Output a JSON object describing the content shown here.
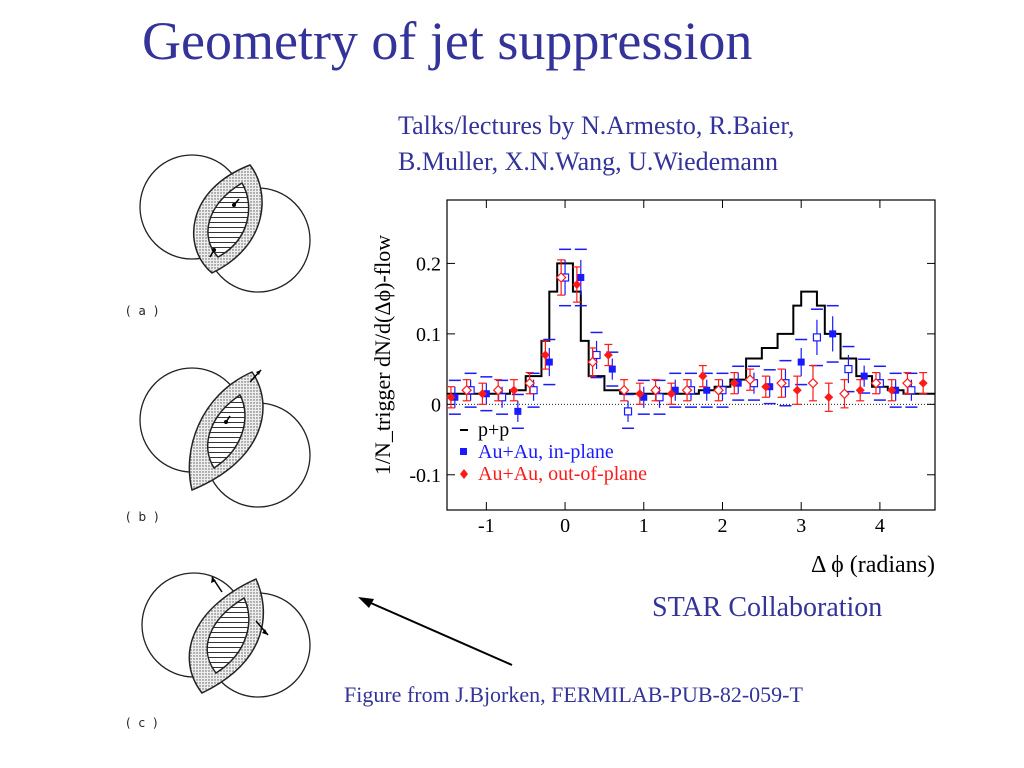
{
  "slide": {
    "title": "Geometry of jet suppression",
    "credits_line1": "Talks/lectures by N.Armesto, R.Baier,",
    "credits_line2": "B.Muller, X.N.Wang, U.Wiedemann",
    "collaboration": "STAR Collaboration",
    "figure_source": "Figure from J.Bjorken, FERMILAB-PUB-82-059-T"
  },
  "diagram": {
    "panels": [
      {
        "label": "( a )"
      },
      {
        "label": "( b )"
      },
      {
        "label": "( c )"
      }
    ]
  },
  "chart_data": {
    "type": "line",
    "xlabel": "Δ ϕ (radians)",
    "ylabel": "1/N_trigger dN/d(Δϕ)-flow",
    "xlim": [
      -1.5,
      4.7
    ],
    "ylim": [
      -0.15,
      0.29
    ],
    "x_ticks": [
      "-1",
      "0",
      "1",
      "2",
      "3",
      "4"
    ],
    "y_ticks": [
      "-0.1",
      "0",
      "0.1",
      "0.2"
    ],
    "x_tick_values": [
      -1,
      0,
      1,
      2,
      3,
      4
    ],
    "y_tick_values": [
      -0.1,
      0,
      0.1,
      0.2
    ],
    "zero_line": "dotted",
    "legend_position": "bottom-left",
    "colors": {
      "pp": "#000000",
      "in_plane": "#1a1aff",
      "out_of_plane": "#ff1a1a"
    },
    "series": [
      {
        "name": "p+p",
        "style": "step",
        "x": [
          -1.5,
          -1.3,
          -1.1,
          -0.9,
          -0.7,
          -0.5,
          -0.3,
          -0.2,
          -0.1,
          0,
          0.1,
          0.2,
          0.3,
          0.5,
          0.7,
          0.9,
          1.1,
          1.3,
          1.5,
          1.7,
          1.9,
          2.1,
          2.3,
          2.5,
          2.7,
          2.9,
          3.0,
          3.1,
          3.2,
          3.3,
          3.5,
          3.7,
          3.9,
          4.1,
          4.3,
          4.5,
          4.7
        ],
        "y": [
          0.015,
          0.015,
          0.015,
          0.015,
          0.02,
          0.04,
          0.09,
          0.16,
          0.2,
          0.2,
          0.16,
          0.09,
          0.04,
          0.02,
          0.015,
          0.015,
          0.015,
          0.015,
          0.015,
          0.02,
          0.025,
          0.035,
          0.065,
          0.08,
          0.1,
          0.14,
          0.16,
          0.16,
          0.14,
          0.1,
          0.065,
          0.04,
          0.025,
          0.02,
          0.015,
          0.015,
          0.015
        ]
      },
      {
        "name": "Au+Au, in-plane",
        "style": "marker",
        "x": [
          -1.4,
          -1.2,
          -1.0,
          -0.8,
          -0.6,
          -0.4,
          -0.2,
          0,
          0.2,
          0.4,
          0.6,
          0.8,
          1.0,
          1.2,
          1.4,
          1.6,
          1.8,
          2.0,
          2.2,
          2.4,
          2.6,
          2.8,
          3.0,
          3.2,
          3.4,
          3.6,
          3.8,
          4.0,
          4.2,
          4.4
        ],
        "y": [
          0.01,
          0.02,
          0.015,
          0.01,
          -0.01,
          0.02,
          0.06,
          0.18,
          0.18,
          0.07,
          0.05,
          -0.01,
          0.01,
          0.01,
          0.02,
          0.02,
          0.02,
          0.02,
          0.03,
          0.03,
          0.025,
          0.03,
          0.06,
          0.095,
          0.1,
          0.05,
          0.04,
          0.03,
          0.02,
          0.02
        ],
        "err": [
          0.015,
          0.015,
          0.015,
          0.015,
          0.015,
          0.015,
          0.02,
          0.025,
          0.025,
          0.02,
          0.015,
          0.015,
          0.015,
          0.015,
          0.015,
          0.015,
          0.015,
          0.015,
          0.015,
          0.015,
          0.015,
          0.02,
          0.02,
          0.025,
          0.025,
          0.02,
          0.015,
          0.015,
          0.015,
          0.015
        ]
      },
      {
        "name": "Au+Au, out-of-plane",
        "style": "marker",
        "x": [
          -1.45,
          -1.25,
          -1.05,
          -0.85,
          -0.65,
          -0.45,
          -0.25,
          -0.05,
          0.15,
          0.35,
          0.55,
          0.75,
          0.95,
          1.15,
          1.35,
          1.55,
          1.75,
          1.95,
          2.15,
          2.35,
          2.55,
          2.75,
          2.95,
          3.15,
          3.35,
          3.55,
          3.75,
          3.95,
          4.15,
          4.35,
          4.55
        ],
        "y": [
          0.01,
          0.02,
          0.015,
          0.02,
          0.02,
          0.03,
          0.07,
          0.18,
          0.17,
          0.06,
          0.07,
          0.02,
          0.015,
          0.02,
          0.015,
          0.02,
          0.04,
          0.02,
          0.03,
          0.035,
          0.025,
          0.03,
          0.02,
          0.03,
          0.01,
          0.015,
          0.02,
          0.03,
          0.02,
          0.03,
          0.03
        ],
        "err": [
          0.015,
          0.015,
          0.015,
          0.015,
          0.015,
          0.015,
          0.02,
          0.025,
          0.025,
          0.02,
          0.015,
          0.015,
          0.015,
          0.015,
          0.015,
          0.015,
          0.015,
          0.015,
          0.015,
          0.015,
          0.015,
          0.02,
          0.02,
          0.025,
          0.02,
          0.02,
          0.015,
          0.015,
          0.015,
          0.015,
          0.015
        ]
      }
    ]
  }
}
